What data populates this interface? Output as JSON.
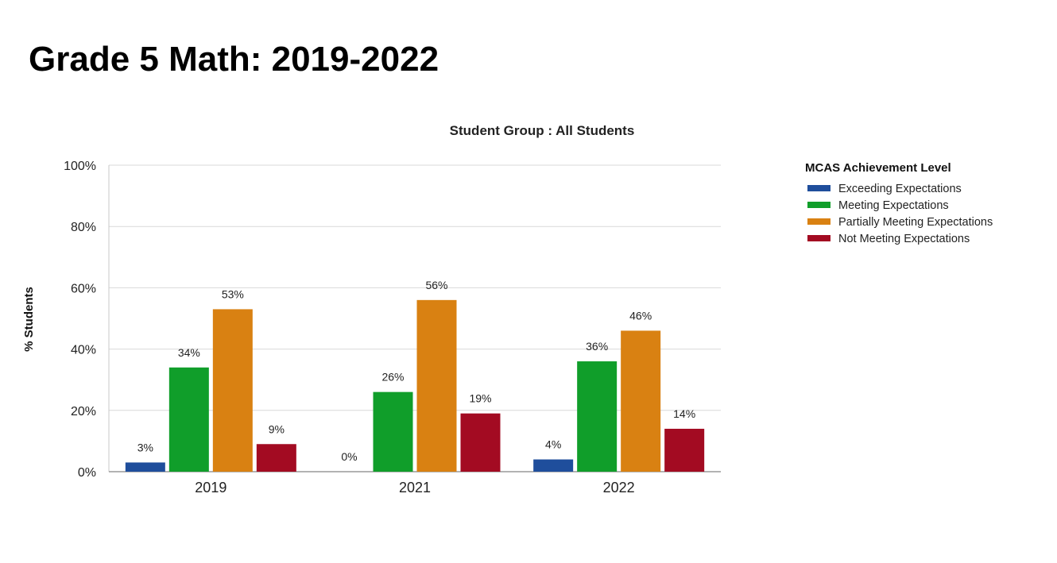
{
  "page": {
    "title": "Grade 5 Math: 2019-2022"
  },
  "chart_data": {
    "type": "bar",
    "title": "Student Group : All Students",
    "xlabel": "",
    "ylabel": "% Students",
    "ylim": [
      0,
      100
    ],
    "yticks": [
      0,
      20,
      40,
      60,
      80,
      100
    ],
    "ytick_labels": [
      "0%",
      "20%",
      "40%",
      "60%",
      "80%",
      "100%"
    ],
    "grid": true,
    "legend_title": "MCAS Achievement Level",
    "legend_position": "right",
    "categories": [
      "2019",
      "2021",
      "2022"
    ],
    "series": [
      {
        "name": "Exceeding Expectations",
        "color": "#1f4e9c",
        "values": [
          3,
          0,
          4
        ],
        "labels": [
          "3%",
          "0%",
          "4%"
        ]
      },
      {
        "name": "Meeting Expectations",
        "color": "#109e2a",
        "values": [
          34,
          26,
          36
        ],
        "labels": [
          "34%",
          "26%",
          "36%"
        ]
      },
      {
        "name": "Partially Meeting Expectations",
        "color": "#d98112",
        "values": [
          53,
          56,
          46
        ],
        "labels": [
          "53%",
          "56%",
          "46%"
        ]
      },
      {
        "name": "Not Meeting Expectations",
        "color": "#a30b22",
        "values": [
          9,
          19,
          14
        ],
        "labels": [
          "9%",
          "19%",
          "14%"
        ]
      }
    ]
  }
}
